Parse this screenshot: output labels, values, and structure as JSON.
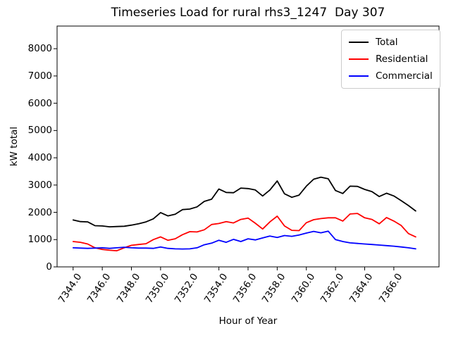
{
  "title": "Timeseries Load for rural rhs3_1247  Day 307",
  "chart_data": {
    "type": "line",
    "title": "Timeseries Load for rural rhs3_1247  Day 307",
    "xlabel": "Hour of Year",
    "ylabel": "kW total",
    "xlim": [
      7342.9,
      7369.1
    ],
    "ylim": [
      0,
      8830
    ],
    "grid": false,
    "legend": {
      "position": "upper right"
    },
    "xtick_values": [
      7344,
      7346,
      7348,
      7350,
      7352,
      7354,
      7356,
      7358,
      7360,
      7362,
      7364,
      7366
    ],
    "xtick_labels": [
      "7344.0",
      "7346.0",
      "7348.0",
      "7350.0",
      "7352.0",
      "7354.0",
      "7356.0",
      "7358.0",
      "7360.0",
      "7362.0",
      "7364.0",
      "7366.0"
    ],
    "ytick_values": [
      0,
      1000,
      2000,
      3000,
      4000,
      5000,
      6000,
      7000,
      8000
    ],
    "ytick_labels": [
      "0",
      "1000",
      "2000",
      "3000",
      "4000",
      "5000",
      "6000",
      "7000",
      "8000"
    ],
    "x": [
      7344.0,
      7344.5,
      7345.0,
      7345.5,
      7346.0,
      7346.5,
      7347.0,
      7347.5,
      7348.0,
      7348.5,
      7349.0,
      7349.5,
      7350.0,
      7350.5,
      7351.0,
      7351.5,
      7352.0,
      7352.5,
      7353.0,
      7353.5,
      7354.0,
      7354.5,
      7355.0,
      7355.5,
      7356.0,
      7356.5,
      7357.0,
      7357.5,
      7358.0,
      7358.5,
      7359.0,
      7359.5,
      7360.0,
      7360.5,
      7361.0,
      7361.5,
      7362.0,
      7362.5,
      7363.0,
      7363.5,
      7364.0,
      7364.5,
      7365.0,
      7365.5,
      7366.0,
      7366.5,
      7367.0,
      7367.5
    ],
    "series": [
      {
        "name": "Total",
        "color": "#000000",
        "values": [
          1720,
          1660,
          1650,
          1510,
          1500,
          1470,
          1480,
          1490,
          1530,
          1580,
          1650,
          1760,
          1990,
          1870,
          1930,
          2100,
          2120,
          2200,
          2400,
          2480,
          2855,
          2730,
          2720,
          2890,
          2870,
          2820,
          2600,
          2820,
          3150,
          2680,
          2550,
          2630,
          2960,
          3215,
          3290,
          3230,
          2800,
          2690,
          2960,
          2950,
          2840,
          2760,
          2580,
          2700,
          2600,
          2430,
          2250,
          2050
        ]
      },
      {
        "name": "Residential",
        "color": "#ff0000",
        "values": [
          930,
          900,
          840,
          700,
          640,
          610,
          590,
          700,
          790,
          820,
          850,
          1000,
          1100,
          975,
          1030,
          1180,
          1290,
          1280,
          1360,
          1555,
          1590,
          1660,
          1610,
          1740,
          1790,
          1600,
          1390,
          1650,
          1860,
          1500,
          1340,
          1330,
          1620,
          1730,
          1770,
          1800,
          1800,
          1680,
          1940,
          1960,
          1800,
          1740,
          1580,
          1810,
          1680,
          1520,
          1220,
          1100
        ]
      },
      {
        "name": "Commercial",
        "color": "#0000ff",
        "values": [
          700,
          690,
          680,
          690,
          700,
          680,
          700,
          720,
          700,
          690,
          690,
          680,
          730,
          680,
          660,
          655,
          660,
          700,
          810,
          870,
          975,
          900,
          1010,
          930,
          1030,
          990,
          1060,
          1130,
          1080,
          1150,
          1120,
          1170,
          1240,
          1300,
          1250,
          1310,
          1000,
          930,
          880,
          860,
          840,
          820,
          800,
          780,
          760,
          730,
          700,
          660
        ]
      }
    ]
  }
}
